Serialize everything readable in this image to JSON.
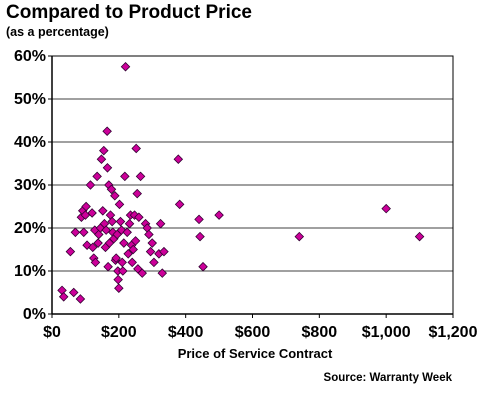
{
  "header": {
    "title": "Compared to Product Price",
    "subtitle": "(as a percentage)"
  },
  "footer": {
    "source": "Source: Warranty Week"
  },
  "colors": {
    "marker_fill": "#CC0099",
    "marker_stroke": "#330033",
    "axis": "#000000",
    "grid": "#000000"
  },
  "chart_data": {
    "type": "scatter",
    "title": "Compared to Product Price",
    "subtitle": "(as a percentage)",
    "xlabel": "Price of Service Contract",
    "ylabel": "",
    "xlim": [
      0,
      1200
    ],
    "ylim": [
      0,
      60
    ],
    "x_ticks": [
      0,
      200,
      400,
      600,
      800,
      1000,
      1200
    ],
    "x_tick_labels": [
      "$0",
      "$200",
      "$400",
      "$600",
      "$800",
      "$1,000",
      "$1,200"
    ],
    "y_ticks": [
      0,
      10,
      20,
      30,
      40,
      50,
      60
    ],
    "y_tick_labels": [
      "0%",
      "10%",
      "20%",
      "30%",
      "40%",
      "50%",
      "60%"
    ],
    "grid": "horizontal",
    "legend": "none",
    "marker": "diamond",
    "points": [
      {
        "x": 30,
        "y": 5.5
      },
      {
        "x": 35,
        "y": 4
      },
      {
        "x": 55,
        "y": 14.5
      },
      {
        "x": 65,
        "y": 5
      },
      {
        "x": 70,
        "y": 19
      },
      {
        "x": 85,
        "y": 3.5
      },
      {
        "x": 88,
        "y": 22.5
      },
      {
        "x": 92,
        "y": 24
      },
      {
        "x": 95,
        "y": 19
      },
      {
        "x": 100,
        "y": 23
      },
      {
        "x": 102,
        "y": 25
      },
      {
        "x": 105,
        "y": 16
      },
      {
        "x": 115,
        "y": 30
      },
      {
        "x": 120,
        "y": 23.5
      },
      {
        "x": 122,
        "y": 15.5
      },
      {
        "x": 125,
        "y": 13
      },
      {
        "x": 128,
        "y": 19.5
      },
      {
        "x": 130,
        "y": 12
      },
      {
        "x": 135,
        "y": 32
      },
      {
        "x": 138,
        "y": 16.5
      },
      {
        "x": 140,
        "y": 18.5
      },
      {
        "x": 145,
        "y": 20
      },
      {
        "x": 148,
        "y": 36
      },
      {
        "x": 152,
        "y": 24
      },
      {
        "x": 155,
        "y": 38
      },
      {
        "x": 157,
        "y": 21
      },
      {
        "x": 160,
        "y": 15.5
      },
      {
        "x": 162,
        "y": 19.5
      },
      {
        "x": 165,
        "y": 42.5
      },
      {
        "x": 166,
        "y": 34
      },
      {
        "x": 168,
        "y": 11
      },
      {
        "x": 170,
        "y": 30
      },
      {
        "x": 172,
        "y": 16.5
      },
      {
        "x": 175,
        "y": 23
      },
      {
        "x": 178,
        "y": 29
      },
      {
        "x": 180,
        "y": 21.5
      },
      {
        "x": 182,
        "y": 19
      },
      {
        "x": 185,
        "y": 17.5
      },
      {
        "x": 188,
        "y": 27.5
      },
      {
        "x": 190,
        "y": 12.5
      },
      {
        "x": 192,
        "y": 13
      },
      {
        "x": 195,
        "y": 18.5
      },
      {
        "x": 197,
        "y": 10
      },
      {
        "x": 198,
        "y": 8
      },
      {
        "x": 200,
        "y": 6
      },
      {
        "x": 202,
        "y": 25.5
      },
      {
        "x": 205,
        "y": 21.5
      },
      {
        "x": 208,
        "y": 19.5
      },
      {
        "x": 210,
        "y": 12
      },
      {
        "x": 212,
        "y": 10
      },
      {
        "x": 215,
        "y": 16.5
      },
      {
        "x": 218,
        "y": 32
      },
      {
        "x": 220,
        "y": 57.5
      },
      {
        "x": 225,
        "y": 19
      },
      {
        "x": 228,
        "y": 14
      },
      {
        "x": 232,
        "y": 21
      },
      {
        "x": 235,
        "y": 23
      },
      {
        "x": 238,
        "y": 16
      },
      {
        "x": 240,
        "y": 12
      },
      {
        "x": 243,
        "y": 15
      },
      {
        "x": 247,
        "y": 23
      },
      {
        "x": 250,
        "y": 17
      },
      {
        "x": 252,
        "y": 38.5
      },
      {
        "x": 255,
        "y": 28
      },
      {
        "x": 257,
        "y": 10.5
      },
      {
        "x": 260,
        "y": 22.5
      },
      {
        "x": 265,
        "y": 32
      },
      {
        "x": 270,
        "y": 9.5
      },
      {
        "x": 280,
        "y": 21
      },
      {
        "x": 285,
        "y": 20
      },
      {
        "x": 290,
        "y": 18.5
      },
      {
        "x": 295,
        "y": 14.5
      },
      {
        "x": 300,
        "y": 16.5
      },
      {
        "x": 305,
        "y": 12
      },
      {
        "x": 320,
        "y": 14
      },
      {
        "x": 325,
        "y": 21
      },
      {
        "x": 330,
        "y": 9.5
      },
      {
        "x": 335,
        "y": 14.5
      },
      {
        "x": 378,
        "y": 36
      },
      {
        "x": 382,
        "y": 25.5
      },
      {
        "x": 440,
        "y": 22
      },
      {
        "x": 443,
        "y": 18
      },
      {
        "x": 452,
        "y": 11
      },
      {
        "x": 500,
        "y": 23
      },
      {
        "x": 740,
        "y": 18
      },
      {
        "x": 1000,
        "y": 24.5
      },
      {
        "x": 1100,
        "y": 18
      }
    ]
  }
}
